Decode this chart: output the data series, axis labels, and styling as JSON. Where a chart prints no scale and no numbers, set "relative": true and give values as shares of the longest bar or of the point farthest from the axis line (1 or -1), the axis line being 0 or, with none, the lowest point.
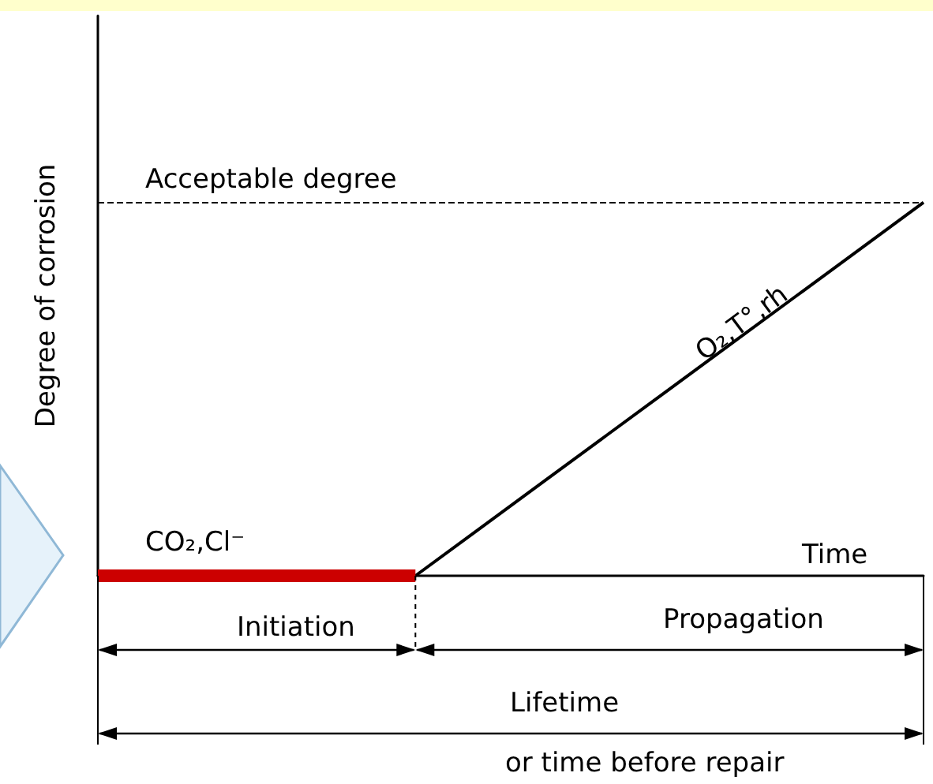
{
  "chart_data": {
    "type": "line",
    "relative": true,
    "xlabel": "Time",
    "ylabel": "Degree of corrosion",
    "categories": [
      null,
      null,
      null,
      null,
      null,
      null,
      null,
      null,
      null,
      null,
      null,
      null,
      null,
      null
    ],
    "series": [
      {
        "color": "#cc0000",
        "values": [
          0,
          0,
          0,
          0,
          0,
          0,
          null,
          null,
          null,
          null,
          null,
          null,
          null,
          null
        ]
      },
      {
        "color": "#000000",
        "values": [
          null,
          null,
          null,
          null,
          null,
          0,
          0.125,
          0.25,
          0.375,
          0.5,
          0.625,
          0.75,
          0.875,
          1
        ]
      }
    ],
    "ref_lines": [
      {
        "axis": "y",
        "value": 1,
        "label": "Acceptable degree",
        "color": "#000000",
        "line_style": "dashed"
      }
    ],
    "annotations": [
      "CO₂,Cl⁻",
      "O₂,T°,rh",
      "Initiation",
      "Propagation",
      "Lifetime",
      "or time before repair"
    ],
    "grid": false,
    "marker": "none",
    "line_style": "solid"
  }
}
